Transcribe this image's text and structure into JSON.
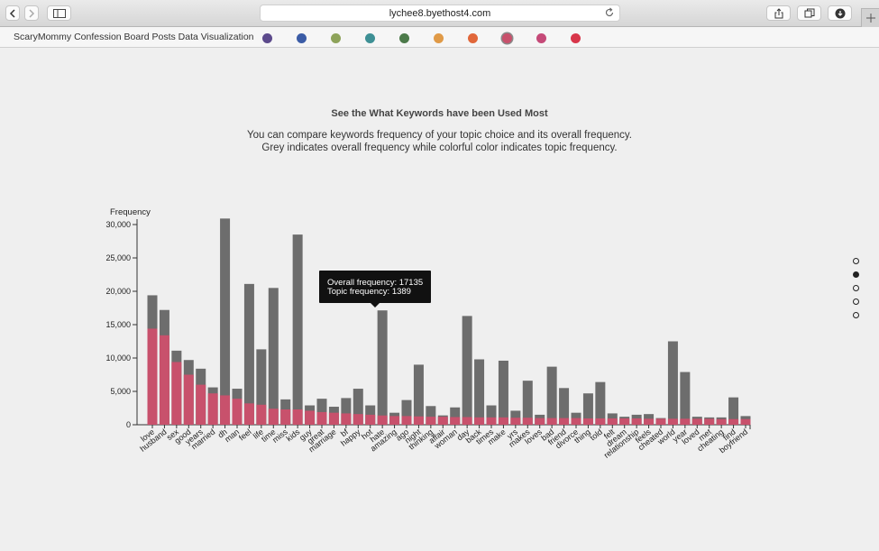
{
  "browser": {
    "url": "lychee8.byethost4.com"
  },
  "navbar": {
    "brand": "ScaryMommy Confession Board Posts Data Visualization",
    "swatches": [
      {
        "color": "#5c4a8c",
        "active": false
      },
      {
        "color": "#3b5ca6",
        "active": false
      },
      {
        "color": "#8ea35a",
        "active": false
      },
      {
        "color": "#3e9095",
        "active": false
      },
      {
        "color": "#4c7a4a",
        "active": false
      },
      {
        "color": "#e09a47",
        "active": false
      },
      {
        "color": "#e1673a",
        "active": false
      },
      {
        "color": "#c8516c",
        "active": true
      },
      {
        "color": "#c54a78",
        "active": false
      },
      {
        "color": "#d8364a",
        "active": false
      }
    ]
  },
  "heading": {
    "title": "See the What Keywords have been Used Most",
    "line1": "You can compare keywords frequency of your topic choice and its overall frequency.",
    "line2": "Grey indicates overall frequency while colorful color indicates topic frequency."
  },
  "pager": {
    "count": 5,
    "active": 1
  },
  "tooltip": {
    "overall": "Overall frequency: 17135",
    "topic": "Topic frequency: 1389"
  },
  "chart_data": {
    "type": "bar",
    "ylabel": "Frequency",
    "ylim": [
      0,
      30000
    ],
    "yticks": [
      "0",
      "5,000",
      "10,000",
      "15,000",
      "20,000",
      "25,000",
      "30,000"
    ],
    "colors": {
      "overall": "#6d6d6d",
      "topic": "#c8516c"
    },
    "categories": [
      "love",
      "husband",
      "sex",
      "good",
      "years",
      "married",
      "dh",
      "man",
      "feel",
      "life",
      "time",
      "miss",
      "kids",
      "guy",
      "great",
      "marriage",
      "bf",
      "happy",
      "hot",
      "hate",
      "amazing",
      "ago",
      "night",
      "thinking",
      "affair",
      "woman",
      "day",
      "back",
      "times",
      "make",
      "yrs",
      "makes",
      "loves",
      "bad",
      "friend",
      "divorce",
      "thing",
      "told",
      "felt",
      "dream",
      "relationship",
      "feels",
      "cheated",
      "world",
      "year",
      "loved",
      "met",
      "cheating",
      "find",
      "boyfriend"
    ],
    "series": [
      {
        "name": "Overall frequency",
        "values": [
          19400,
          17200,
          11100,
          9700,
          8400,
          5600,
          30900,
          5400,
          21100,
          11300,
          20500,
          3800,
          28500,
          2900,
          3900,
          2700,
          4000,
          5400,
          2900,
          17135,
          1800,
          3700,
          9000,
          2800,
          1400,
          2600,
          16300,
          9800,
          2900,
          9600,
          2100,
          6600,
          1500,
          8700,
          5500,
          1800,
          4700,
          6400,
          1700,
          1200,
          1500,
          1600,
          1000,
          12500,
          7900,
          1200,
          1100,
          1100,
          4100,
          1300
        ]
      },
      {
        "name": "Topic frequency",
        "values": [
          14400,
          13400,
          9400,
          7500,
          6000,
          4700,
          4400,
          3900,
          3200,
          3000,
          2400,
          2300,
          2300,
          2100,
          1900,
          1800,
          1700,
          1600,
          1500,
          1389,
          1300,
          1300,
          1250,
          1200,
          1200,
          1150,
          1150,
          1100,
          1100,
          1100,
          1050,
          1050,
          1000,
          1000,
          1000,
          1000,
          950,
          950,
          950,
          950,
          950,
          900,
          900,
          900,
          900,
          900,
          900,
          850,
          850,
          850
        ]
      }
    ]
  }
}
